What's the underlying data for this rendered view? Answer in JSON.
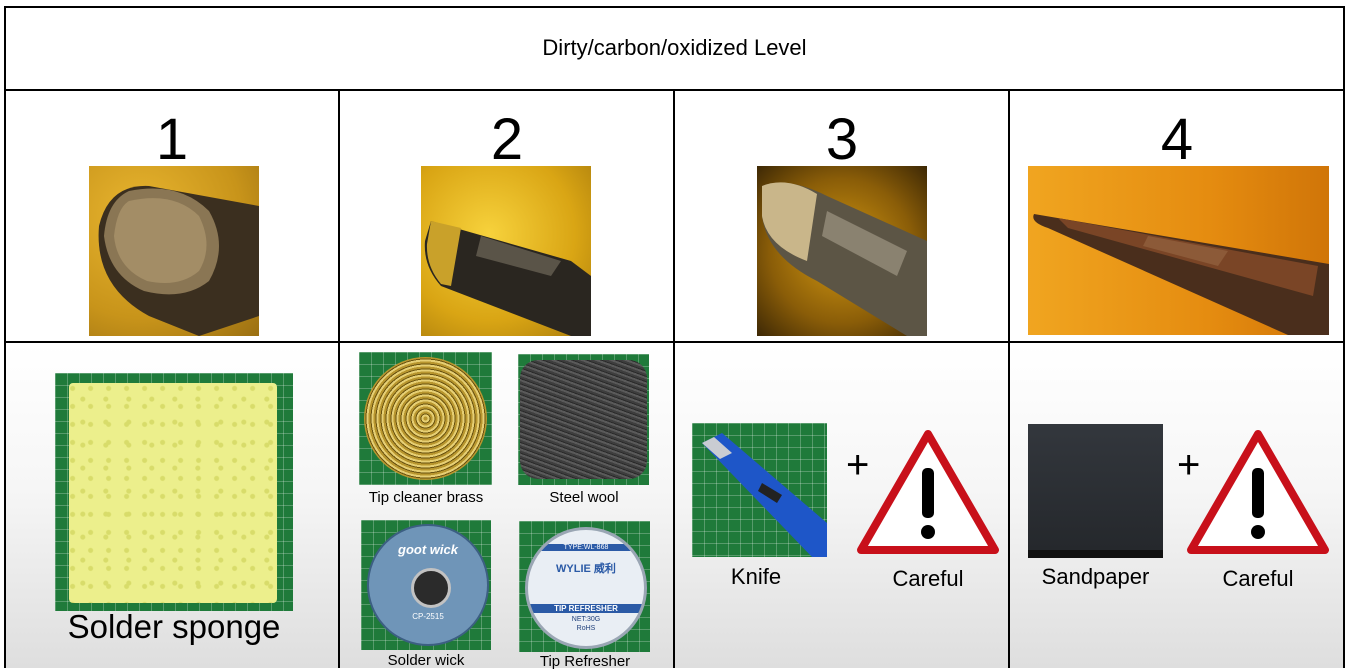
{
  "header": {
    "title": "Dirty/carbon/oxidized Level"
  },
  "levels": [
    {
      "number": "1"
    },
    {
      "number": "2"
    },
    {
      "number": "3"
    },
    {
      "number": "4"
    }
  ],
  "tools": {
    "level1": {
      "sponge_label": "Solder sponge"
    },
    "level2": {
      "brass_label": "Tip cleaner brass",
      "steelwool_label": "Steel wool",
      "wick_label": "Solder wick",
      "refresher_label": "Tip Refresher"
    },
    "level3": {
      "knife_label": "Knife",
      "plus": "+",
      "careful_label": "Careful"
    },
    "level4": {
      "sandpaper_label": "Sandpaper",
      "plus": "+",
      "careful_label": "Careful"
    }
  },
  "product_text": {
    "wick_brand": "goot wick",
    "wick_model": "CP-2515",
    "refresher_brand": "WYLIE 威利",
    "refresher_type": "TYPE:WL-868",
    "refresher_name": "TIP REFRESHER",
    "refresher_net": "NET:30G",
    "refresher_rohs": "RoHS"
  },
  "colors": {
    "warning_red": "#c8101a",
    "cutmat_green": "#1f7a3a",
    "sponge_yellow": "#ecef8c"
  }
}
